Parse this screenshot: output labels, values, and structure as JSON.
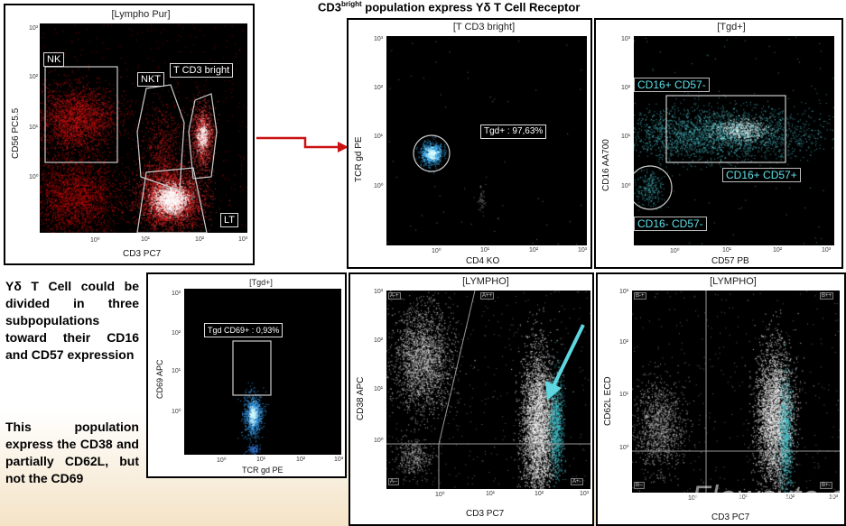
{
  "header": {
    "title_pre": "CD3",
    "title_sup": "bright",
    "title_post": " population express Yδ T Cell Receptor"
  },
  "panel_lympho_pur": {
    "title": "[Lympho Pur]",
    "xlabel": "CD3 PC7",
    "ylabel": "CD56 PC5.5",
    "x_ticks": [
      "10⁰",
      "10¹",
      "10²",
      "10³"
    ],
    "y_ticks": [
      "10⁰",
      "10¹",
      "10²",
      "10³"
    ],
    "gates": [
      "NK",
      "NKT",
      "T CD3 bright",
      "LT"
    ]
  },
  "panel_t_cd3_bright": {
    "title": "[T CD3 bright]",
    "xlabel": "CD4 KO",
    "ylabel": "TCR gd PE",
    "x_ticks": [
      "10⁰",
      "10¹",
      "10²",
      "10³"
    ],
    "y_ticks": [
      "10⁰",
      "10¹",
      "10²",
      "10³"
    ],
    "gate_label": "Tgd+ : 97,63%"
  },
  "panel_tgd_cd16": {
    "title": "[Tgd+]",
    "xlabel": "CD57 PB",
    "ylabel": "CD16 AA700",
    "x_ticks": [
      "10⁰",
      "10¹",
      "10²",
      "10³"
    ],
    "y_ticks": [
      "10⁰",
      "10¹",
      "10²",
      "10³"
    ],
    "gates": [
      "CD16+ CD57-",
      "CD16+ CD57+",
      "CD16- CD57-"
    ]
  },
  "panel_tgd_cd69": {
    "title": "[Tgd+]",
    "xlabel": "TCR gd PE",
    "ylabel": "CD69 APC",
    "x_ticks": [
      "10⁰",
      "10¹",
      "10²",
      "10³"
    ],
    "y_ticks": [
      "10⁰",
      "10¹",
      "10²",
      "10³"
    ],
    "gate_label": "Tgd CD69+ : 0,93%"
  },
  "panel_lympho_cd38": {
    "title": "[LYMPHO]",
    "xlabel": "CD3 PC7",
    "ylabel": "CD38 APC",
    "x_ticks": [
      "10⁰",
      "10¹",
      "10²",
      "10³"
    ],
    "y_ticks": [
      "10⁰",
      "10¹",
      "10²",
      "10³"
    ],
    "quadrants": [
      "A-+",
      "A++",
      "A--",
      "A+-"
    ]
  },
  "panel_lympho_cd62l": {
    "title": "[LYMPHO]",
    "xlabel": "CD3 PC7",
    "ylabel": "CD62L ECD",
    "x_ticks": [
      "10⁰",
      "10¹",
      "10²",
      "10³"
    ],
    "y_ticks": [
      "10⁰",
      "10¹",
      "10²",
      "10³"
    ],
    "quadrants": [
      "B-+",
      "B++",
      "B--",
      "B+-"
    ]
  },
  "text": {
    "para1": "Yδ T Cell could be divided in three subpopulations toward their CD16 and CD57 expression",
    "para2": "This population express the CD38 and partially CD62L, but not the CD69"
  },
  "watermark": "Flowcyto.cn",
  "colors": {
    "arrow_red": "#cc1111",
    "arrow_cyan": "#5fd6e0",
    "gate_cyan": "#5ee0e8"
  }
}
